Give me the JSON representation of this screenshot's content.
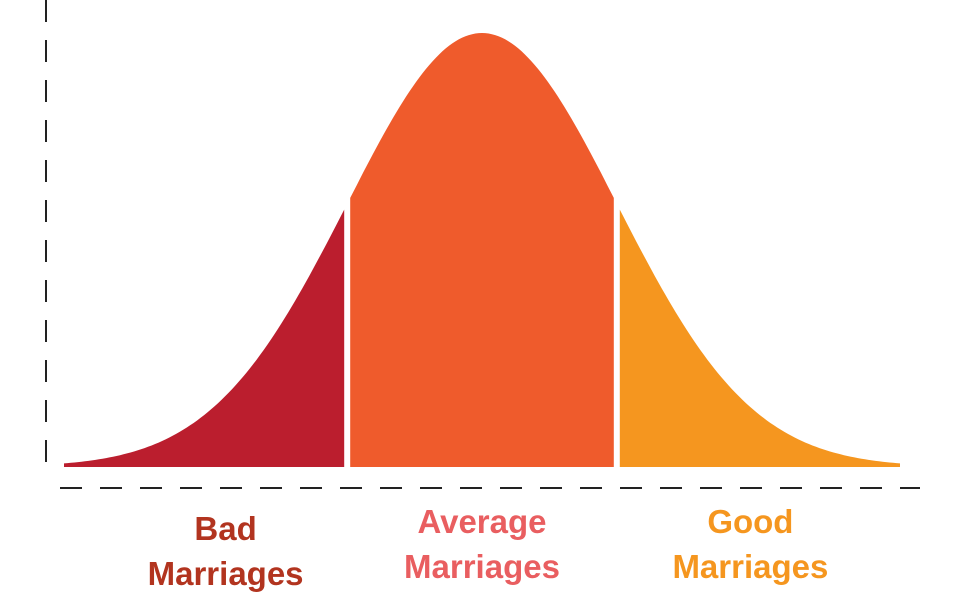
{
  "chart_data": {
    "type": "area",
    "title": "",
    "xlabel": "",
    "ylabel": "",
    "xlim": [
      -3.1,
      3.1
    ],
    "grid": false,
    "legend": "none",
    "distribution": "normal",
    "regions": [
      {
        "label_lines": [
          "Bad",
          "Marriages"
        ],
        "x_start": -3.1,
        "x_end": -1.0,
        "color": "#bb1e2e",
        "label_color": "#b2341f"
      },
      {
        "label_lines": [
          "Average",
          "Marriages"
        ],
        "x_start": -1.0,
        "x_end": 1.0,
        "color": "#ef5b2c",
        "label_color": "#e95e60"
      },
      {
        "label_lines": [
          "Good",
          "Marriages"
        ],
        "x_start": 1.0,
        "x_end": 3.1,
        "color": "#f5961f",
        "label_color": "#f5961f"
      }
    ]
  }
}
